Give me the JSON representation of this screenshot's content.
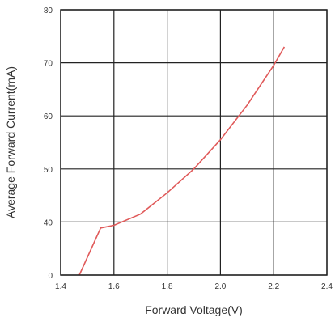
{
  "chart_data": {
    "type": "line",
    "title": "",
    "xlabel": "Forward  Voltage(V)",
    "ylabel": "Average Forward Current(mA)",
    "xlim": [
      1.4,
      2.4
    ],
    "ylim_display": [
      "0",
      "40",
      "50",
      "60",
      "70",
      "80"
    ],
    "x_ticks": [
      "1.4",
      "1.6",
      "1.8",
      "2.0",
      "2.2",
      "2.4"
    ],
    "y_ticks": [
      "0",
      "40",
      "50",
      "60",
      "70",
      "80"
    ],
    "grid": true,
    "series_color": "#e05a5a",
    "grid_color": "#222222",
    "series": [
      {
        "x": [
          1.47,
          1.55,
          1.6,
          1.7,
          1.8,
          1.9,
          2.0,
          2.1,
          2.2,
          2.24
        ],
        "y": [
          0,
          35.5,
          37.5,
          41.5,
          45.5,
          50.0,
          55.5,
          62.0,
          69.5,
          73.0
        ]
      }
    ]
  }
}
